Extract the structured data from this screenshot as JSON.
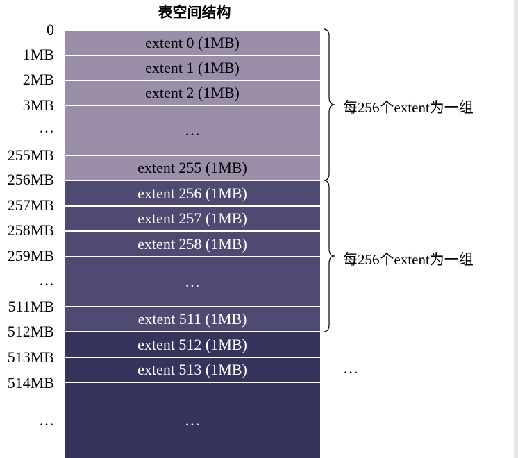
{
  "title": "表空间结构",
  "blocks": [
    {
      "label": "extent 0 (1MB)",
      "group": 1
    },
    {
      "label": "extent 1 (1MB)",
      "group": 1
    },
    {
      "label": "extent 2 (1MB)",
      "group": 1
    },
    {
      "label": "…",
      "group": 1
    },
    {
      "label": "extent 255 (1MB)",
      "group": 1
    },
    {
      "label": "extent 256 (1MB)",
      "group": 2
    },
    {
      "label": "extent 257 (1MB)",
      "group": 2
    },
    {
      "label": "extent 258 (1MB)",
      "group": 2
    },
    {
      "label": "…",
      "group": 2
    },
    {
      "label": "extent 511 (1MB)",
      "group": 2
    },
    {
      "label": "extent 512 (1MB)",
      "group": 3
    },
    {
      "label": "extent 513 (1MB)",
      "group": 3
    },
    {
      "label": "…",
      "group": 3
    }
  ],
  "offsets": [
    "0",
    "1MB",
    "2MB",
    "3MB",
    "…",
    "255MB",
    "256MB",
    "257MB",
    "258MB",
    "259MB",
    "…",
    "511MB",
    "512MB",
    "513MB",
    "514MB",
    "…"
  ],
  "groups": [
    {
      "label": "每256个extent为一组"
    },
    {
      "label": "每256个extent为一组"
    }
  ],
  "more_label": "…",
  "colors": {
    "group1": "#9a8ea9",
    "group2": "#4f4a72",
    "group3": "#36335d"
  }
}
